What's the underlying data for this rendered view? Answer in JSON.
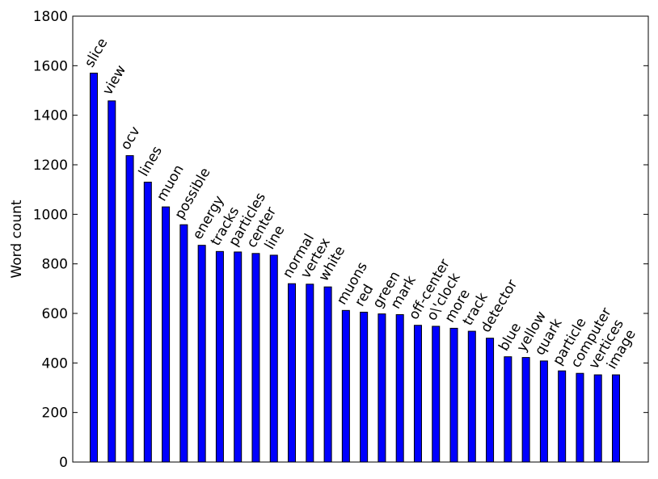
{
  "chart_data": {
    "type": "bar",
    "title": "",
    "xlabel": "",
    "ylabel": "Word count",
    "ylim": [
      0,
      1800
    ],
    "yticks": [
      0,
      200,
      400,
      600,
      800,
      1000,
      1200,
      1400,
      1600,
      1800
    ],
    "grid": false,
    "bar_color": "#0000ff",
    "categories": [
      "slice",
      "view",
      "ocv",
      "lines",
      "muon",
      "possible",
      "energy",
      "tracks",
      "particles",
      "center",
      "line",
      "normal",
      "vertex",
      "white",
      "muons",
      "red",
      "green",
      "mark",
      "off-center",
      "o\\'clock",
      "more",
      "track",
      "detector",
      "blue",
      "yellow",
      "quark",
      "particle",
      "computer",
      "vertices",
      "image"
    ],
    "values": [
      1570,
      1458,
      1237,
      1130,
      1030,
      958,
      875,
      850,
      848,
      842,
      835,
      720,
      718,
      707,
      612,
      605,
      598,
      595,
      552,
      548,
      540,
      528,
      500,
      425,
      422,
      408,
      368,
      358,
      352,
      352
    ]
  }
}
